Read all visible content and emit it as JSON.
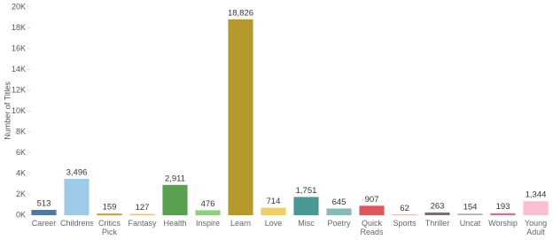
{
  "chart_data": {
    "type": "bar",
    "y_label": "Number of Titles",
    "categories": [
      "Career",
      "Childrens",
      "Critics Pick",
      "Fantasy",
      "Health",
      "Inspire",
      "Learn",
      "Love",
      "Misc",
      "Poetry",
      "Quick Reads",
      "Sports",
      "Thriller",
      "Uncat",
      "Worship",
      "Young Adult"
    ],
    "values": [
      513,
      3496,
      159,
      127,
      2911,
      476,
      18826,
      714,
      1751,
      645,
      907,
      62,
      263,
      154,
      193,
      1344
    ],
    "value_labels": [
      "513",
      "3,496",
      "159",
      "127",
      "2,911",
      "476",
      "18,826",
      "714",
      "1,751",
      "645",
      "907",
      "62",
      "263",
      "154",
      "193",
      "1,344"
    ],
    "colors": [
      "#4e79a7",
      "#a0cbe8",
      "#f28e2b",
      "#ffbe7d",
      "#59a14f",
      "#8cd17d",
      "#b6992d",
      "#f1ce63",
      "#499894",
      "#86bcb6",
      "#e15759",
      "#ff9d9a",
      "#79706e",
      "#bab0ac",
      "#d37295",
      "#fabfd2"
    ],
    "ylim": [
      0,
      20000
    ],
    "yticks": [
      {
        "value": 0,
        "label": "0K"
      },
      {
        "value": 2000,
        "label": "2K"
      },
      {
        "value": 4000,
        "label": "4K"
      },
      {
        "value": 6000,
        "label": "6K"
      },
      {
        "value": 8000,
        "label": "8K"
      },
      {
        "value": 10000,
        "label": "10K"
      },
      {
        "value": 12000,
        "label": "12K"
      },
      {
        "value": 14000,
        "label": "14K"
      },
      {
        "value": 16000,
        "label": "16K"
      },
      {
        "value": 18000,
        "label": "18K"
      },
      {
        "value": 20000,
        "label": "20K"
      }
    ],
    "grid": false
  }
}
